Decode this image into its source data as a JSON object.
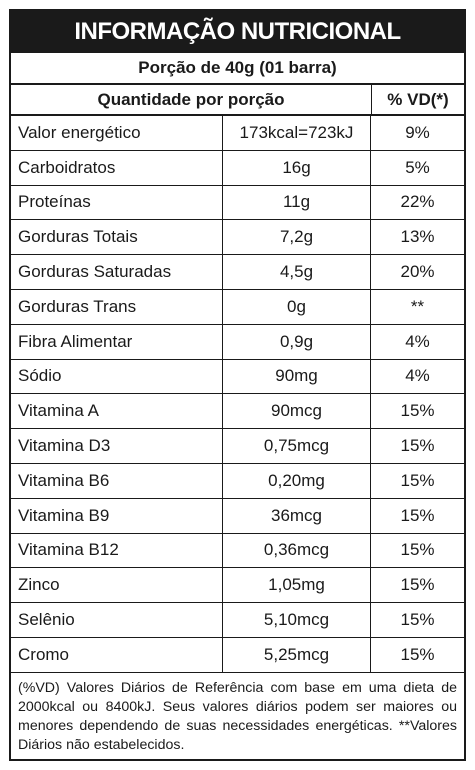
{
  "title": "INFORMAÇÃO NUTRICIONAL",
  "portion": "Porção de 40g (01 barra)",
  "header": {
    "quantity": "Quantidade por porção",
    "vd": "% VD(*)"
  },
  "rows": [
    {
      "name": "Valor energético",
      "qty": "173kcal=723kJ",
      "vd": "9%"
    },
    {
      "name": "Carboidratos",
      "qty": "16g",
      "vd": "5%"
    },
    {
      "name": "Proteínas",
      "qty": "11g",
      "vd": "22%"
    },
    {
      "name": "Gorduras Totais",
      "qty": "7,2g",
      "vd": "13%"
    },
    {
      "name": "Gorduras Saturadas",
      "qty": "4,5g",
      "vd": "20%"
    },
    {
      "name": "Gorduras Trans",
      "qty": "0g",
      "vd": "**"
    },
    {
      "name": "Fibra Alimentar",
      "qty": "0,9g",
      "vd": "4%"
    },
    {
      "name": "Sódio",
      "qty": "90mg",
      "vd": "4%"
    },
    {
      "name": "Vitamina A",
      "qty": "90mcg",
      "vd": "15%"
    },
    {
      "name": "Vitamina D3",
      "qty": "0,75mcg",
      "vd": "15%"
    },
    {
      "name": "Vitamina B6",
      "qty": "0,20mg",
      "vd": "15%"
    },
    {
      "name": "Vitamina B9",
      "qty": "36mcg",
      "vd": "15%"
    },
    {
      "name": "Vitamina B12",
      "qty": "0,36mcg",
      "vd": "15%"
    },
    {
      "name": "Zinco",
      "qty": "1,05mg",
      "vd": "15%"
    },
    {
      "name": "Selênio",
      "qty": "5,10mcg",
      "vd": "15%"
    },
    {
      "name": "Cromo",
      "qty": "5,25mcg",
      "vd": "15%"
    }
  ],
  "footnote": "(%VD) Valores Diários de Referência com base em uma dieta de 2000kcal ou 8400kJ. Seus valores diários podem ser maiores ou menores dependendo de suas necessidades energéticas. **Valores Diários não estabelecidos."
}
